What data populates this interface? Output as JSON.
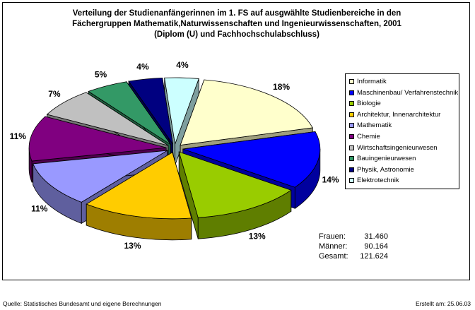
{
  "title": {
    "line1": "Verteilung der Studienanfängerinnen im 1. FS auf ausgwählte Studienbereiche in den",
    "line2": "Fächergruppen Mathematik,Naturwissenschaften und Ingenieurwissenschaften, 2001",
    "line3": "(Diplom (U) und Fachhochschulabschluss)"
  },
  "chart_data": {
    "type": "pie",
    "title": "Verteilung der Studienanfängerinnen im 1. FS auf ausgwählte Studienbereiche in den Fächergruppen Mathematik,Naturwissenschaften und Ingenieurwissenschaften, 2001 (Diplom (U) und Fachhochschulabschluss)",
    "style": "3d-exploded",
    "legend_position": "right",
    "categories": [
      "Informatik",
      "Maschinenbau/ Verfahrenstechnik",
      "Biologie",
      "Architektur, Innenarchitektur",
      "Mathematik",
      "Chemie",
      "Wirtschaftsingenieurwesen",
      "Bauingenieurwesen",
      "Physik, Astronomie",
      "Elektrotechnik"
    ],
    "values": [
      18,
      14,
      13,
      13,
      11,
      11,
      7,
      5,
      4,
      4
    ],
    "labels": [
      "18%",
      "14%",
      "13%",
      "13%",
      "11%",
      "11%",
      "7%",
      "5%",
      "4%",
      "4%"
    ],
    "colors": [
      "#FFFFCC",
      "#0000FF",
      "#99CC00",
      "#FFCC00",
      "#9999FF",
      "#800080",
      "#C0C0C0",
      "#339966",
      "#000080",
      "#CCFFFF"
    ]
  },
  "totals": [
    {
      "label": "Frauen:",
      "value": "31.460"
    },
    {
      "label": "Männer:",
      "value": "90.164"
    },
    {
      "label": "Gesamt:",
      "value": "121.624"
    }
  ],
  "footer": {
    "source": "Quelle: Statistisches Bundesamt und eigene Berechnungen",
    "created": "Erstellt am: 25.06.03"
  }
}
